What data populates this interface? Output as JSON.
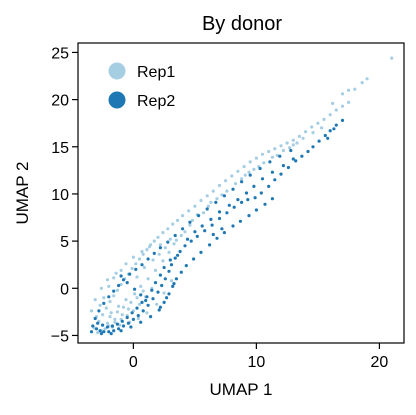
{
  "chart_data": {
    "type": "scatter",
    "title": "By donor",
    "xlabel": "UMAP 1",
    "ylabel": "UMAP 2",
    "xlim": [
      -4.5,
      22
    ],
    "ylim": [
      -5.8,
      26
    ],
    "xticks": [
      0,
      10,
      20
    ],
    "yticks": [
      -5,
      0,
      5,
      10,
      15,
      20,
      25
    ],
    "xtick_labels": [
      "0",
      "10",
      "20"
    ],
    "ytick_labels": [
      "−5",
      "0",
      "5",
      "10",
      "15",
      "20",
      "25"
    ],
    "grid": false,
    "legend_position": "top-left",
    "series": [
      {
        "name": "Rep1",
        "color": "#a6cee3",
        "points": [
          [
            -3.2,
            -4.2
          ],
          [
            -2.8,
            -3.5
          ],
          [
            -2.5,
            -2.8
          ],
          [
            -2.2,
            -2.1
          ],
          [
            -1.9,
            -1.4
          ],
          [
            -1.6,
            -0.8
          ],
          [
            -1.3,
            -0.2
          ],
          [
            -1.0,
            0.4
          ],
          [
            -0.7,
            1.0
          ],
          [
            -0.4,
            1.5
          ],
          [
            -0.1,
            2.1
          ],
          [
            0.2,
            2.6
          ],
          [
            0.5,
            3.1
          ],
          [
            0.8,
            3.6
          ],
          [
            1.1,
            4.1
          ],
          [
            1.4,
            4.6
          ],
          [
            1.7,
            5.0
          ],
          [
            2.0,
            5.4
          ],
          [
            2.4,
            5.9
          ],
          [
            2.8,
            6.3
          ],
          [
            3.2,
            6.8
          ],
          [
            3.6,
            7.2
          ],
          [
            4.0,
            7.7
          ],
          [
            4.5,
            8.2
          ],
          [
            5.0,
            8.7
          ],
          [
            5.5,
            9.3
          ],
          [
            6.0,
            9.8
          ],
          [
            6.5,
            10.3
          ],
          [
            7.0,
            10.9
          ],
          [
            7.5,
            11.4
          ],
          [
            8.0,
            11.9
          ],
          [
            8.5,
            12.4
          ],
          [
            9.0,
            12.9
          ],
          [
            9.5,
            13.4
          ],
          [
            10.0,
            13.8
          ],
          [
            10.5,
            14.2
          ],
          [
            11.0,
            14.5
          ],
          [
            11.5,
            14.8
          ],
          [
            12.0,
            15.1
          ],
          [
            12.5,
            15.4
          ],
          [
            13.0,
            15.7
          ],
          [
            13.5,
            16.1
          ],
          [
            14.0,
            16.6
          ],
          [
            14.5,
            17.1
          ],
          [
            15.0,
            17.5
          ],
          [
            15.5,
            17.9
          ],
          [
            16.0,
            18.4
          ],
          [
            16.5,
            18.9
          ],
          [
            17.0,
            19.3
          ],
          [
            17.5,
            19.7
          ],
          [
            17.0,
            20.6
          ],
          [
            17.5,
            21.0
          ],
          [
            18.0,
            21.1
          ],
          [
            19.0,
            22.2
          ],
          [
            21.0,
            24.4
          ],
          [
            -2.6,
            -4.5
          ],
          [
            -2.0,
            -4.0
          ],
          [
            -1.5,
            -3.6
          ],
          [
            -1.0,
            -3.3
          ],
          [
            -0.5,
            -2.9
          ],
          [
            0.0,
            -2.4
          ],
          [
            0.5,
            -1.7
          ],
          [
            1.0,
            -0.9
          ],
          [
            1.5,
            0.0
          ],
          [
            -2.4,
            -1.0
          ],
          [
            -2.0,
            0.2
          ],
          [
            -1.6,
            1.1
          ],
          [
            -1.0,
            1.9
          ],
          [
            -0.6,
            2.6
          ],
          [
            0.0,
            3.3
          ],
          [
            0.7,
            3.9
          ],
          [
            1.3,
            4.4
          ],
          [
            2.2,
            4.6
          ],
          [
            3.0,
            5.2
          ],
          [
            -3.0,
            -3.0
          ],
          [
            -2.7,
            -1.8
          ],
          [
            -1.8,
            -2.6
          ],
          [
            -1.2,
            -1.9
          ],
          [
            -0.6,
            -1.2
          ],
          [
            0.1,
            -0.6
          ],
          [
            0.6,
            0.2
          ],
          [
            1.2,
            1.0
          ],
          [
            1.8,
            1.9
          ],
          [
            2.4,
            2.9
          ],
          [
            2.9,
            3.8
          ],
          [
            3.3,
            4.7
          ],
          [
            3.9,
            5.6
          ],
          [
            4.6,
            6.7
          ],
          [
            5.2,
            7.8
          ],
          [
            6.1,
            8.7
          ],
          [
            6.8,
            9.5
          ],
          [
            7.6,
            10.3
          ],
          [
            8.3,
            11.1
          ],
          [
            9.1,
            12.0
          ],
          [
            9.8,
            12.6
          ],
          [
            10.6,
            13.3
          ],
          [
            11.3,
            13.9
          ],
          [
            12.2,
            14.6
          ],
          [
            13.0,
            15.2
          ],
          [
            13.8,
            15.9
          ],
          [
            14.6,
            16.5
          ],
          [
            15.3,
            17.0
          ],
          [
            -2.9,
            -4.7
          ],
          [
            -2.3,
            -4.3
          ],
          [
            -1.7,
            -4.1
          ],
          [
            -1.1,
            -3.9
          ],
          [
            -0.3,
            -3.6
          ],
          [
            0.4,
            -3.2
          ],
          [
            1.1,
            -2.6
          ],
          [
            1.9,
            -1.7
          ],
          [
            2.5,
            -0.5
          ],
          [
            3.1,
            0.8
          ],
          [
            -3.4,
            -2.4
          ],
          [
            -3.1,
            -1.2
          ],
          [
            -2.6,
            0.0
          ],
          [
            -2.1,
            0.9
          ],
          [
            -1.4,
            1.6
          ],
          [
            0.3,
            1.2
          ],
          [
            0.9,
            2.2
          ],
          [
            1.6,
            3.0
          ],
          [
            2.1,
            3.6
          ],
          [
            2.6,
            4.3
          ],
          [
            3.5,
            5.1
          ],
          [
            4.2,
            6.0
          ],
          [
            4.8,
            7.2
          ],
          [
            5.7,
            8.0
          ],
          [
            6.3,
            9.1
          ],
          [
            7.2,
            9.9
          ],
          [
            8.8,
            11.6
          ],
          [
            9.4,
            12.3
          ],
          [
            10.2,
            12.9
          ],
          [
            11.7,
            14.1
          ],
          [
            12.7,
            14.9
          ],
          [
            13.3,
            15.4
          ],
          [
            -1.9,
            -3.0
          ],
          [
            -1.3,
            -2.5
          ],
          [
            -0.8,
            -2.0
          ],
          [
            -0.2,
            -1.5
          ],
          [
            0.3,
            -1.0
          ],
          [
            0.8,
            -0.3
          ],
          [
            -2.1,
            -3.7
          ],
          [
            -1.5,
            -3.3
          ],
          [
            -0.9,
            -2.8
          ],
          [
            -0.4,
            -2.2
          ],
          [
            16.2,
            19.6
          ],
          [
            18.6,
            21.8
          ]
        ]
      },
      {
        "name": "Rep2",
        "color": "#1f78b4",
        "points": [
          [
            -3.3,
            -4.0
          ],
          [
            -3.0,
            -4.3
          ],
          [
            -2.7,
            -4.5
          ],
          [
            -2.4,
            -4.6
          ],
          [
            -2.0,
            -4.6
          ],
          [
            -1.6,
            -4.5
          ],
          [
            -1.2,
            -4.3
          ],
          [
            -0.8,
            -4.0
          ],
          [
            -0.4,
            -3.7
          ],
          [
            0.0,
            -3.3
          ],
          [
            0.4,
            -2.9
          ],
          [
            0.8,
            -2.4
          ],
          [
            1.2,
            -1.8
          ],
          [
            1.6,
            -1.1
          ],
          [
            2.0,
            -0.4
          ],
          [
            2.3,
            0.3
          ],
          [
            2.6,
            1.0
          ],
          [
            2.9,
            1.8
          ],
          [
            3.1,
            2.5
          ],
          [
            3.4,
            3.2
          ],
          [
            3.8,
            3.9
          ],
          [
            4.2,
            4.5
          ],
          [
            4.7,
            5.0
          ],
          [
            5.2,
            5.5
          ],
          [
            5.8,
            6.1
          ],
          [
            6.4,
            6.7
          ],
          [
            7.0,
            7.4
          ],
          [
            7.6,
            8.0
          ],
          [
            8.2,
            8.6
          ],
          [
            8.8,
            9.1
          ],
          [
            9.3,
            9.4
          ],
          [
            9.9,
            9.6
          ],
          [
            10.4,
            10.1
          ],
          [
            11.0,
            10.8
          ],
          [
            11.5,
            11.5
          ],
          [
            12.0,
            12.1
          ],
          [
            12.6,
            12.8
          ],
          [
            13.2,
            13.5
          ],
          [
            13.7,
            14.0
          ],
          [
            14.2,
            14.5
          ],
          [
            14.6,
            15.0
          ],
          [
            15.1,
            15.6
          ],
          [
            15.6,
            16.2
          ],
          [
            16.0,
            16.7
          ],
          [
            16.5,
            17.3
          ],
          [
            17.0,
            17.8
          ],
          [
            -3.1,
            -3.2
          ],
          [
            -2.8,
            -2.4
          ],
          [
            -2.4,
            -1.6
          ],
          [
            -2.0,
            -0.9
          ],
          [
            -1.6,
            -0.3
          ],
          [
            -1.2,
            0.3
          ],
          [
            -0.8,
            0.9
          ],
          [
            -0.3,
            1.5
          ],
          [
            0.2,
            2.0
          ],
          [
            0.7,
            2.5
          ],
          [
            1.2,
            3.1
          ],
          [
            1.7,
            3.7
          ],
          [
            2.2,
            4.3
          ],
          [
            2.8,
            4.9
          ],
          [
            3.4,
            5.6
          ],
          [
            4.0,
            6.3
          ],
          [
            4.6,
            7.0
          ],
          [
            5.3,
            7.7
          ],
          [
            6.0,
            8.4
          ],
          [
            6.7,
            9.1
          ],
          [
            7.4,
            9.8
          ],
          [
            8.1,
            10.5
          ],
          [
            8.8,
            11.3
          ],
          [
            9.5,
            12.0
          ],
          [
            10.3,
            12.7
          ],
          [
            11.1,
            13.4
          ],
          [
            11.9,
            14.0
          ],
          [
            12.8,
            14.6
          ],
          [
            2.1,
            -2.3
          ],
          [
            2.5,
            -1.5
          ],
          [
            2.9,
            -0.6
          ],
          [
            3.2,
            0.2
          ],
          [
            3.5,
            1.0
          ],
          [
            3.9,
            1.7
          ],
          [
            4.3,
            2.4
          ],
          [
            4.9,
            3.1
          ],
          [
            5.5,
            3.8
          ],
          [
            6.2,
            4.6
          ],
          [
            6.8,
            5.3
          ],
          [
            7.4,
            5.9
          ],
          [
            8.1,
            6.6
          ],
          [
            8.7,
            7.1
          ],
          [
            9.4,
            7.7
          ],
          [
            10.0,
            8.3
          ],
          [
            10.7,
            8.9
          ],
          [
            11.3,
            9.5
          ],
          [
            -2.9,
            -3.7
          ],
          [
            -2.5,
            -3.9
          ],
          [
            -2.1,
            -4.1
          ],
          [
            -1.7,
            -4.0
          ],
          [
            -1.3,
            -3.8
          ],
          [
            -0.9,
            -3.5
          ],
          [
            -0.5,
            -3.1
          ],
          [
            -0.1,
            -2.6
          ],
          [
            0.3,
            -2.1
          ],
          [
            0.7,
            -1.5
          ],
          [
            1.1,
            -0.9
          ],
          [
            1.5,
            -0.2
          ],
          [
            1.0,
            -1.3
          ],
          [
            0.6,
            -0.7
          ],
          [
            0.1,
            -0.1
          ],
          [
            -0.5,
            0.6
          ],
          [
            -1.0,
            1.3
          ],
          [
            1.8,
            0.6
          ],
          [
            2.2,
            1.4
          ],
          [
            2.5,
            2.2
          ],
          [
            3.0,
            3.0
          ],
          [
            3.6,
            3.5
          ],
          [
            4.4,
            5.2
          ],
          [
            5.0,
            6.0
          ],
          [
            5.6,
            6.6
          ],
          [
            6.3,
            7.3
          ],
          [
            7.0,
            8.1
          ],
          [
            7.8,
            8.8
          ],
          [
            8.5,
            9.4
          ],
          [
            9.2,
            10.1
          ],
          [
            9.8,
            10.8
          ],
          [
            10.5,
            11.6
          ],
          [
            11.3,
            12.3
          ],
          [
            12.2,
            13.0
          ],
          [
            13.0,
            13.7
          ],
          [
            -3.4,
            -4.6
          ],
          [
            -2.6,
            -4.8
          ],
          [
            -1.8,
            -4.8
          ],
          [
            -1.0,
            -4.5
          ],
          [
            -0.2,
            -4.1
          ],
          [
            0.6,
            -3.6
          ],
          [
            1.4,
            -3.0
          ],
          [
            2.2,
            -2.0
          ],
          [
            2.7,
            -1.0
          ],
          [
            3.3,
            0.5
          ],
          [
            6.5,
            5.7
          ],
          [
            7.2,
            6.3
          ],
          [
            15.8,
            15.9
          ],
          [
            16.3,
            16.9
          ]
        ]
      }
    ]
  }
}
